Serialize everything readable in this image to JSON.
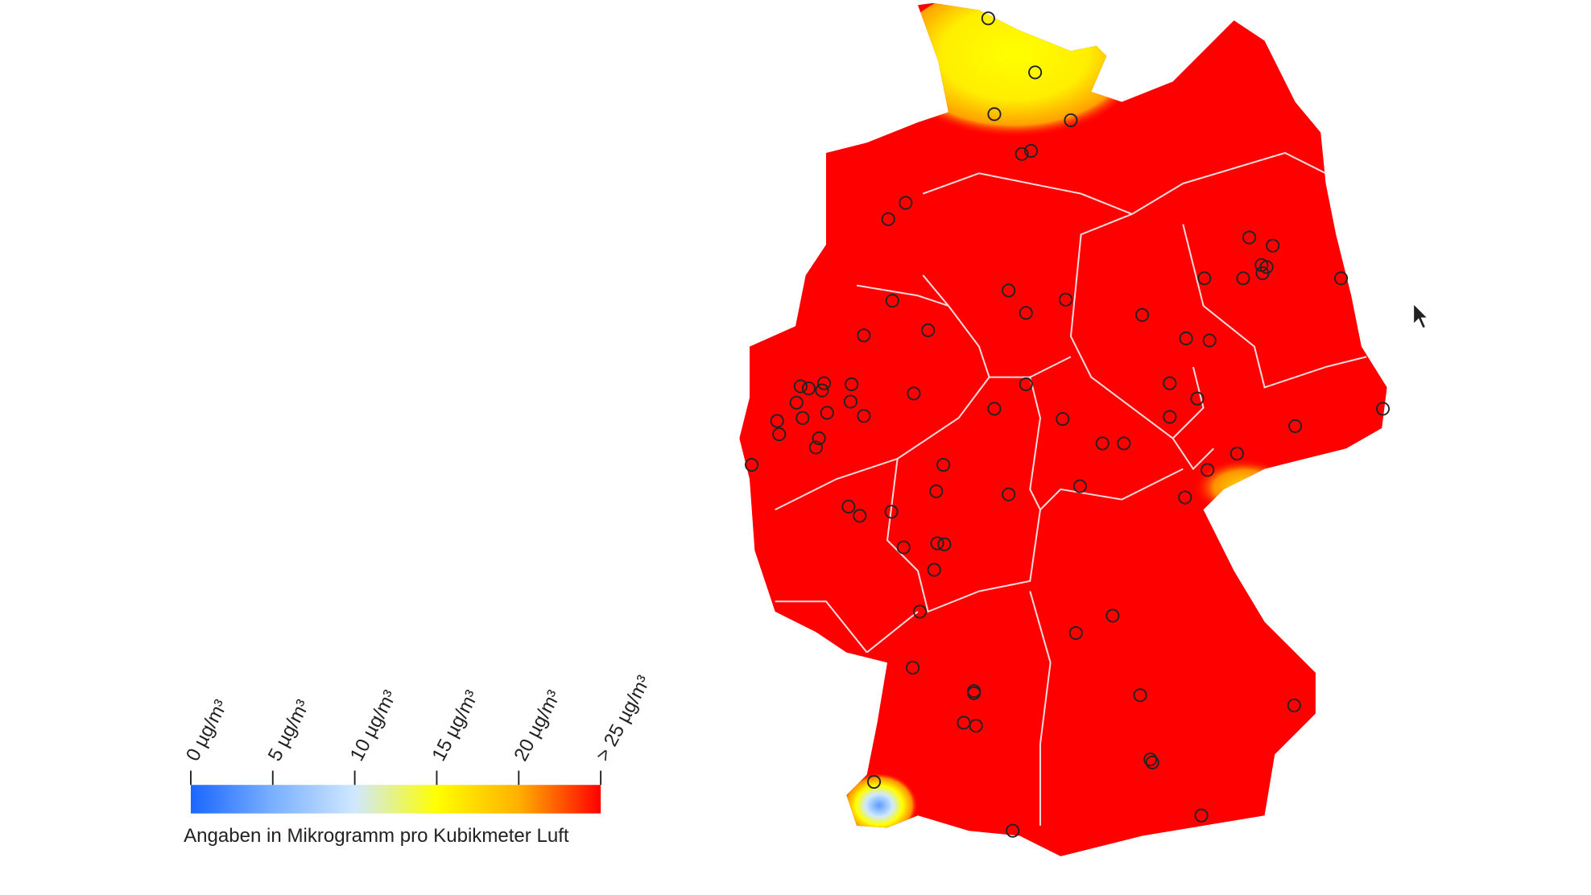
{
  "legend": {
    "ticks": [
      "0 µg/m³",
      "5 µg/m³",
      "10 µg/m³",
      "15 µg/m³",
      "20 µg/m³",
      "> 25 µg/m³"
    ],
    "caption": "Angaben in Mikrogramm pro Kubikmeter Luft"
  }
}
